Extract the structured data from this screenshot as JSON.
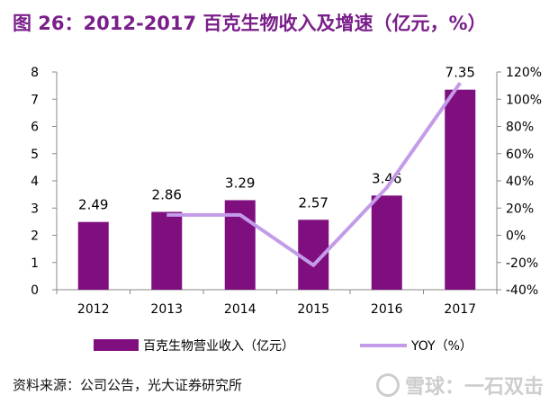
{
  "title": "图 26：2012-2017 百克生物收入及增速（亿元，%）",
  "source": "资料来源：公司公告，光大证券研究所",
  "watermark": {
    "text": "雪球：一石双击",
    "icon": "snowball-logo-icon"
  },
  "colors": {
    "bar": "#7f0f7e",
    "line": "#c39be8",
    "title": "#7a1f8a"
  },
  "chart_data": {
    "type": "bar",
    "categories": [
      "2012",
      "2013",
      "2014",
      "2015",
      "2016",
      "2017"
    ],
    "series": [
      {
        "name": "百克生物营业收入（亿元）",
        "type": "bar",
        "axis": "left",
        "values": [
          2.49,
          2.86,
          3.29,
          2.57,
          3.46,
          7.35
        ],
        "labels": [
          "2.49",
          "2.86",
          "3.29",
          "2.57",
          "3.46",
          "7.35"
        ]
      },
      {
        "name": "YOY（%）",
        "type": "line",
        "axis": "right",
        "values": [
          null,
          15,
          15,
          -22,
          35,
          112
        ]
      }
    ],
    "y_left": {
      "ylim": [
        0,
        8
      ],
      "ticks": [
        "0",
        "1",
        "2",
        "3",
        "4",
        "5",
        "6",
        "7",
        "8"
      ]
    },
    "y_right": {
      "ylim": [
        -40,
        120
      ],
      "ticks": [
        "-40%",
        "-20%",
        "0%",
        "20%",
        "40%",
        "60%",
        "80%",
        "100%",
        "120%"
      ]
    },
    "grid": false,
    "legend_position": "bottom"
  }
}
